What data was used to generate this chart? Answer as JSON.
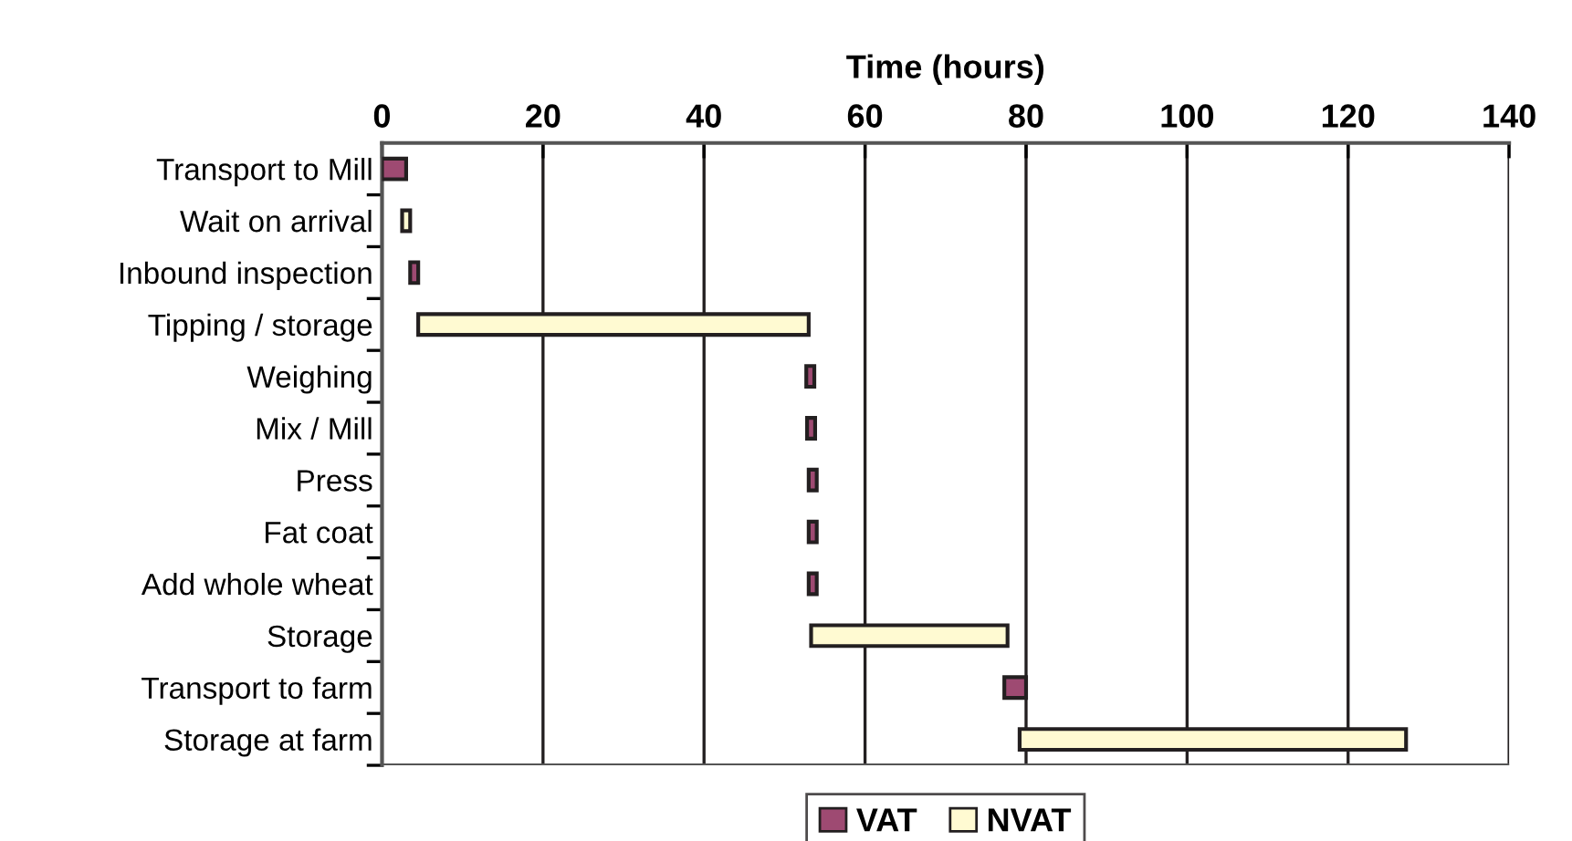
{
  "chart_data": {
    "type": "bar",
    "orientation": "horizontal",
    "xlabel": "Time (hours)",
    "categories": [
      "Transport to Mill",
      "Wait on arrival",
      "Inbound inspection",
      "Tipping / storage",
      "Weighing",
      "Mix / Mill",
      "Press",
      "Fat coat",
      "Add whole wheat",
      "Storage",
      "Transport to farm",
      "Storage at farm"
    ],
    "series": [
      {
        "name": "VAT",
        "color": "#9e4a72",
        "base": [
          0,
          null,
          3.5,
          null,
          52.7,
          52.8,
          53,
          53,
          53,
          null,
          77.3,
          null
        ],
        "values": [
          3,
          null,
          1,
          null,
          1,
          1,
          1,
          1,
          1,
          null,
          2.7,
          null
        ]
      },
      {
        "name": "NVAT",
        "color": "#fffad2",
        "base": [
          null,
          2.5,
          null,
          4.5,
          null,
          null,
          null,
          null,
          null,
          53.3,
          null,
          79.2
        ],
        "values": [
          null,
          1,
          null,
          48.5,
          null,
          null,
          null,
          null,
          null,
          24.4,
          null,
          48
        ]
      }
    ],
    "xlim": [
      0,
      140
    ],
    "xticks": [
      0,
      20,
      40,
      60,
      80,
      100,
      120,
      140
    ],
    "grid": "x",
    "legend": "bottom"
  }
}
